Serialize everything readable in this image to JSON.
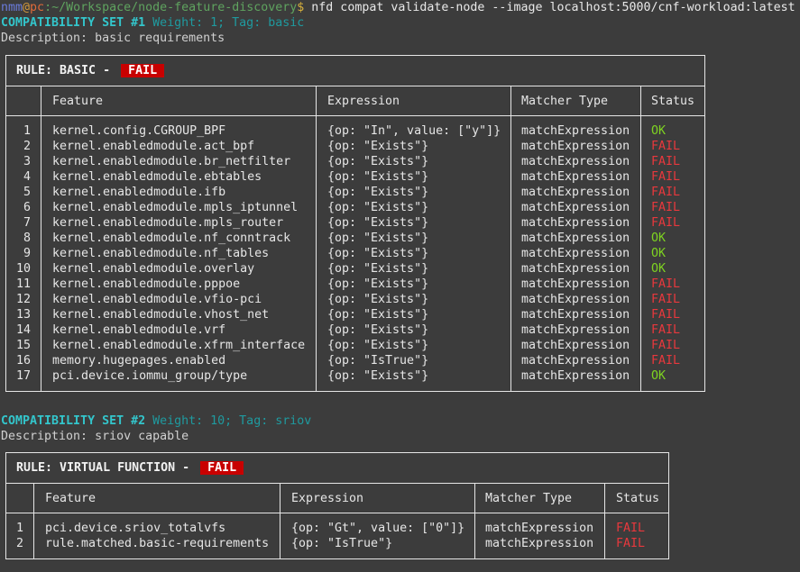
{
  "terminal": {
    "prompt": {
      "user": "nmm",
      "at": "@",
      "host": "pc",
      "sep": ":",
      "path": "~/Workspace/node-feature-discovery",
      "dollar": "$"
    },
    "command": " nfd compat validate-node --image localhost:5000/cnf-workload:latest"
  },
  "sets": [
    {
      "heading": "COMPATIBILITY SET #1",
      "meta": " Weight: 1; Tag: basic",
      "description": "Description: basic requirements",
      "rule_label": "RULE: BASIC - ",
      "rule_status": "FAIL",
      "columns": [
        "",
        "Feature",
        "Expression",
        "Matcher Type",
        "Status"
      ],
      "rows": [
        [
          "1",
          "kernel.config.CGROUP_BPF",
          "{op: \"In\", value: [\"y\"]}",
          "matchExpression",
          "OK"
        ],
        [
          "2",
          "kernel.enabledmodule.act_bpf",
          "{op: \"Exists\"}",
          "matchExpression",
          "FAIL"
        ],
        [
          "3",
          "kernel.enabledmodule.br_netfilter",
          "{op: \"Exists\"}",
          "matchExpression",
          "FAIL"
        ],
        [
          "4",
          "kernel.enabledmodule.ebtables",
          "{op: \"Exists\"}",
          "matchExpression",
          "FAIL"
        ],
        [
          "5",
          "kernel.enabledmodule.ifb",
          "{op: \"Exists\"}",
          "matchExpression",
          "FAIL"
        ],
        [
          "6",
          "kernel.enabledmodule.mpls_iptunnel",
          "{op: \"Exists\"}",
          "matchExpression",
          "FAIL"
        ],
        [
          "7",
          "kernel.enabledmodule.mpls_router",
          "{op: \"Exists\"}",
          "matchExpression",
          "FAIL"
        ],
        [
          "8",
          "kernel.enabledmodule.nf_conntrack",
          "{op: \"Exists\"}",
          "matchExpression",
          "OK"
        ],
        [
          "9",
          "kernel.enabledmodule.nf_tables",
          "{op: \"Exists\"}",
          "matchExpression",
          "OK"
        ],
        [
          "10",
          "kernel.enabledmodule.overlay",
          "{op: \"Exists\"}",
          "matchExpression",
          "OK"
        ],
        [
          "11",
          "kernel.enabledmodule.pppoe",
          "{op: \"Exists\"}",
          "matchExpression",
          "FAIL"
        ],
        [
          "12",
          "kernel.enabledmodule.vfio-pci",
          "{op: \"Exists\"}",
          "matchExpression",
          "FAIL"
        ],
        [
          "13",
          "kernel.enabledmodule.vhost_net",
          "{op: \"Exists\"}",
          "matchExpression",
          "FAIL"
        ],
        [
          "14",
          "kernel.enabledmodule.vrf",
          "{op: \"Exists\"}",
          "matchExpression",
          "FAIL"
        ],
        [
          "15",
          "kernel.enabledmodule.xfrm_interface",
          "{op: \"Exists\"}",
          "matchExpression",
          "FAIL"
        ],
        [
          "16",
          "memory.hugepages.enabled",
          "{op: \"IsTrue\"}",
          "matchExpression",
          "FAIL"
        ],
        [
          "17",
          "pci.device.iommu_group/type",
          "{op: \"Exists\"}",
          "matchExpression",
          "OK"
        ]
      ]
    },
    {
      "heading": "COMPATIBILITY SET #2",
      "meta": " Weight: 10; Tag: sriov",
      "description": "Description: sriov capable",
      "rule_label": "RULE: VIRTUAL FUNCTION - ",
      "rule_status": "FAIL",
      "columns": [
        "",
        "Feature",
        "Expression",
        "Matcher Type",
        "Status"
      ],
      "rows": [
        [
          "1",
          "pci.device.sriov_totalvfs",
          "{op: \"Gt\", value: [\"0\"]}",
          "matchExpression",
          "FAIL"
        ],
        [
          "2",
          "rule.matched.basic-requirements",
          "{op: \"IsTrue\"}",
          "matchExpression",
          "FAIL"
        ]
      ]
    }
  ],
  "colors": {
    "background": "#3c3c3c",
    "ok": "#7ed321",
    "fail": "#e8383d",
    "badge": "#c80000",
    "set_heading": "#33c6cc"
  }
}
